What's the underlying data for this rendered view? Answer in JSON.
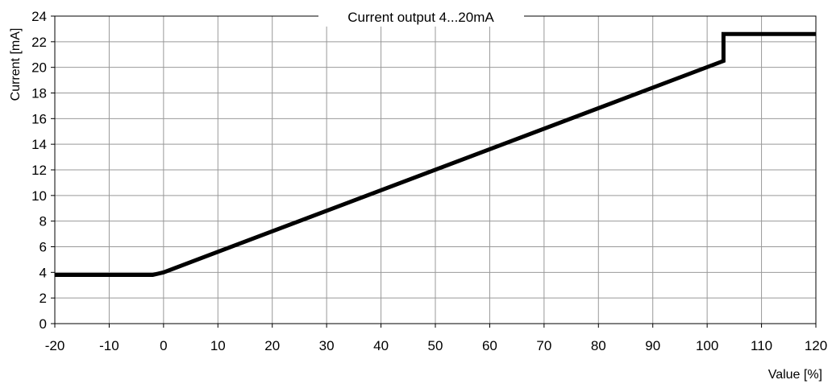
{
  "chart_data": {
    "type": "line",
    "title": "Current output 4...20mA",
    "xlabel": "Value [%]",
    "ylabel": "Current [mA]",
    "xlim": [
      -20,
      120
    ],
    "ylim": [
      0,
      24
    ],
    "x_ticks": [
      -20,
      -10,
      0,
      10,
      20,
      30,
      40,
      50,
      60,
      70,
      80,
      90,
      100,
      110,
      120
    ],
    "y_ticks": [
      0,
      2,
      4,
      6,
      8,
      10,
      12,
      14,
      16,
      18,
      20,
      22,
      24
    ],
    "grid": true,
    "series": [
      {
        "x": [
          -20,
          -2,
          0,
          103,
          103,
          120
        ],
        "y": [
          3.8,
          3.8,
          4.0,
          20.5,
          22.6,
          22.6
        ]
      }
    ],
    "colors": {
      "line": "#000000",
      "grid": "#999999",
      "axes": "#000000"
    }
  }
}
